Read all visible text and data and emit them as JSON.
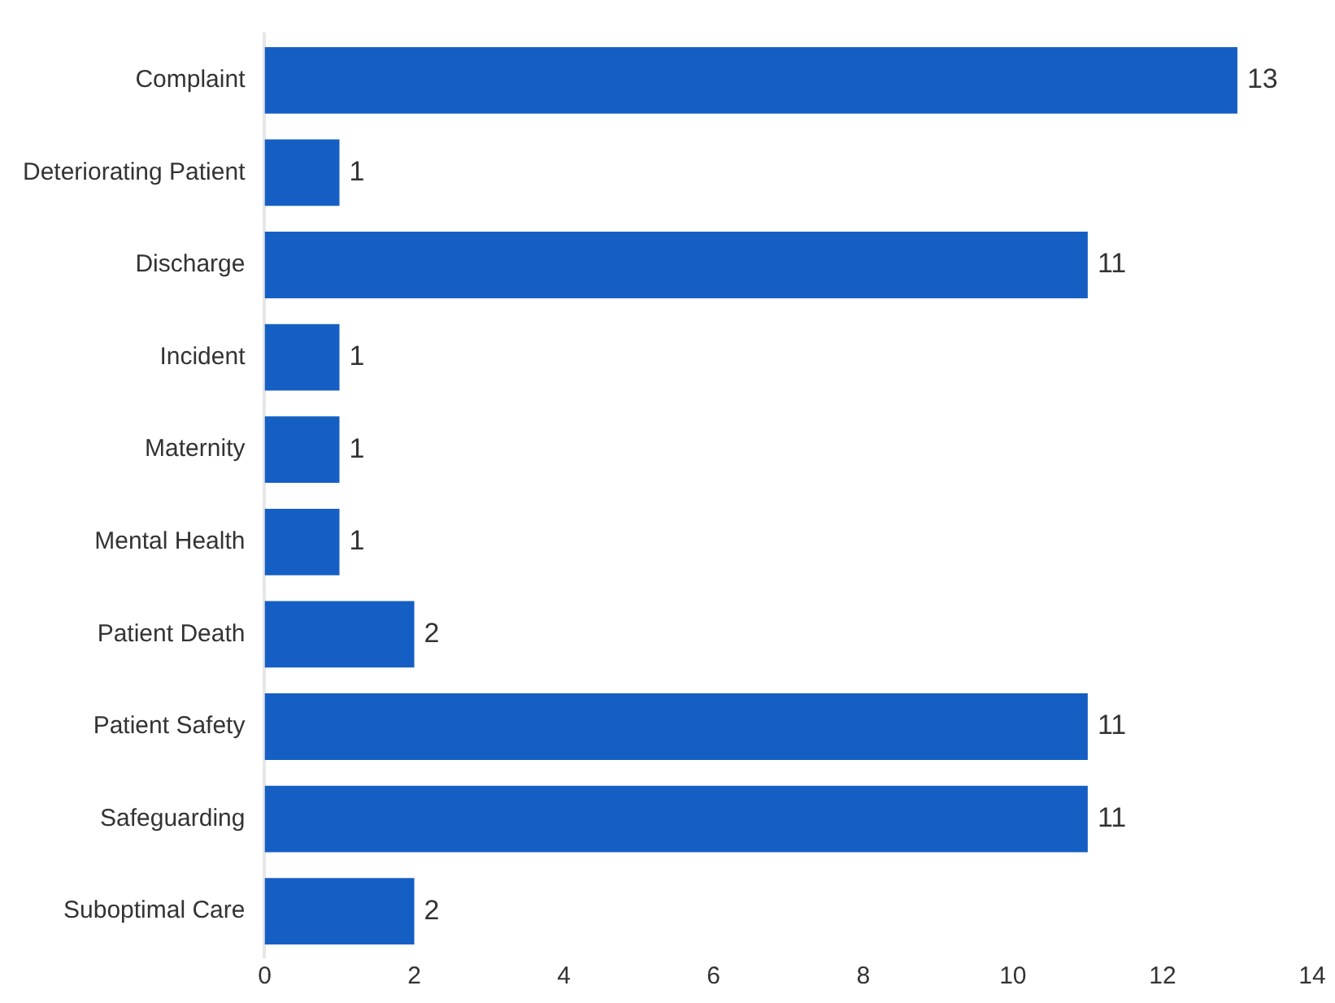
{
  "chart_data": {
    "type": "bar",
    "orientation": "horizontal",
    "categories": [
      "Complaint",
      "Deteriorating Patient",
      "Discharge",
      "Incident",
      "Maternity",
      "Mental Health",
      "Patient Death",
      "Patient Safety",
      "Safeguarding",
      "Suboptimal Care"
    ],
    "values": [
      13,
      1,
      11,
      1,
      1,
      1,
      2,
      11,
      11,
      2
    ],
    "color": "#155fc4",
    "xlim": [
      0,
      14
    ],
    "xticks": [
      0,
      2,
      4,
      6,
      8,
      10,
      12,
      14
    ],
    "grid": false,
    "legend": false,
    "data_labels": true
  }
}
